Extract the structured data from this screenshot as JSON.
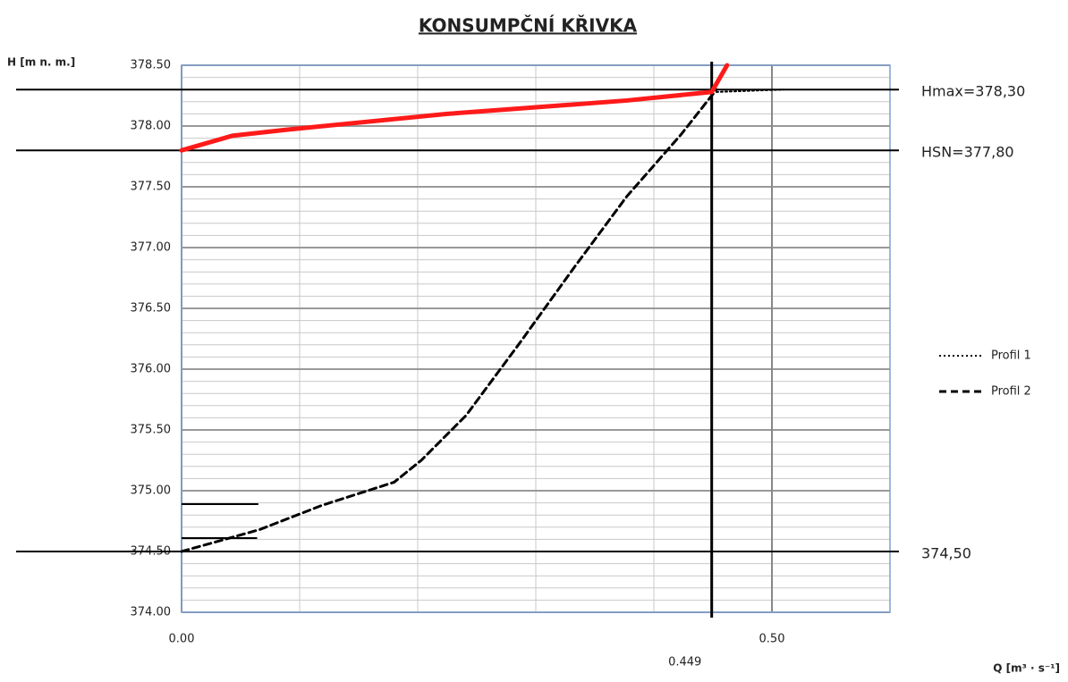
{
  "chart_data": {
    "type": "line",
    "title": "KONSUMPČNÍ KŘIVKA",
    "y_label": "H [m n. m.]",
    "x_label": "Q [m³ · s⁻¹]",
    "xlim": [
      0,
      0.6
    ],
    "ylim": [
      374,
      378.5
    ],
    "xticks": [
      {
        "value": 0,
        "label": "0.00"
      },
      {
        "value": 0.5,
        "label": "0.50"
      }
    ],
    "xgrid": [
      0.1,
      0.2,
      0.3,
      0.4
    ],
    "yticks": [
      {
        "value": 374,
        "label": "374.00"
      },
      {
        "value": 374.5,
        "label": "374.50"
      },
      {
        "value": 375,
        "label": "375.00"
      },
      {
        "value": 375.5,
        "label": "375.50"
      },
      {
        "value": 376,
        "label": "376.00"
      },
      {
        "value": 376.5,
        "label": "376.50"
      },
      {
        "value": 377,
        "label": "377.00"
      },
      {
        "value": 377.5,
        "label": "377.50"
      },
      {
        "value": 378,
        "label": "378.00"
      },
      {
        "value": 378.5,
        "label": "378.50"
      }
    ],
    "minor_grid_step": 0.1,
    "grid": true,
    "legend": "right",
    "series": [
      {
        "name": "Profil 1",
        "color": "#000000",
        "style": "dotted",
        "x": [
          0.453,
          0.51
        ],
        "values": [
          378.28,
          378.3
        ]
      },
      {
        "name": "Profil 2",
        "color": "#000000",
        "style": "dashed",
        "x": [
          0,
          0.066,
          0.119,
          0.18,
          0.203,
          0.241,
          0.286,
          0.332,
          0.377,
          0.423,
          0.453
        ],
        "values": [
          374.5,
          374.68,
          374.88,
          375.07,
          375.25,
          375.62,
          376.21,
          376.83,
          377.42,
          377.93,
          378.3
        ]
      },
      {
        "color": "#ff1a1a",
        "style": "solid",
        "x": [
          0,
          0.043,
          0.089,
          0.225,
          0.377,
          0.449,
          0.462
        ],
        "values": [
          377.8,
          377.92,
          377.97,
          378.1,
          378.21,
          378.28,
          378.5
        ]
      }
    ],
    "hlines": [
      {
        "value": 378.3,
        "label": "Hmax=378,30"
      },
      {
        "value": 377.8,
        "label": "HSN=377,80"
      },
      {
        "value": 374.5,
        "label": "374,50"
      }
    ],
    "vlines": [
      {
        "value": 0.449,
        "label": "0.449"
      }
    ],
    "segments": [
      {
        "x": [
          0,
          0.065
        ],
        "y": 374.89
      },
      {
        "x": [
          0,
          0.064
        ],
        "y": 374.61
      }
    ]
  }
}
